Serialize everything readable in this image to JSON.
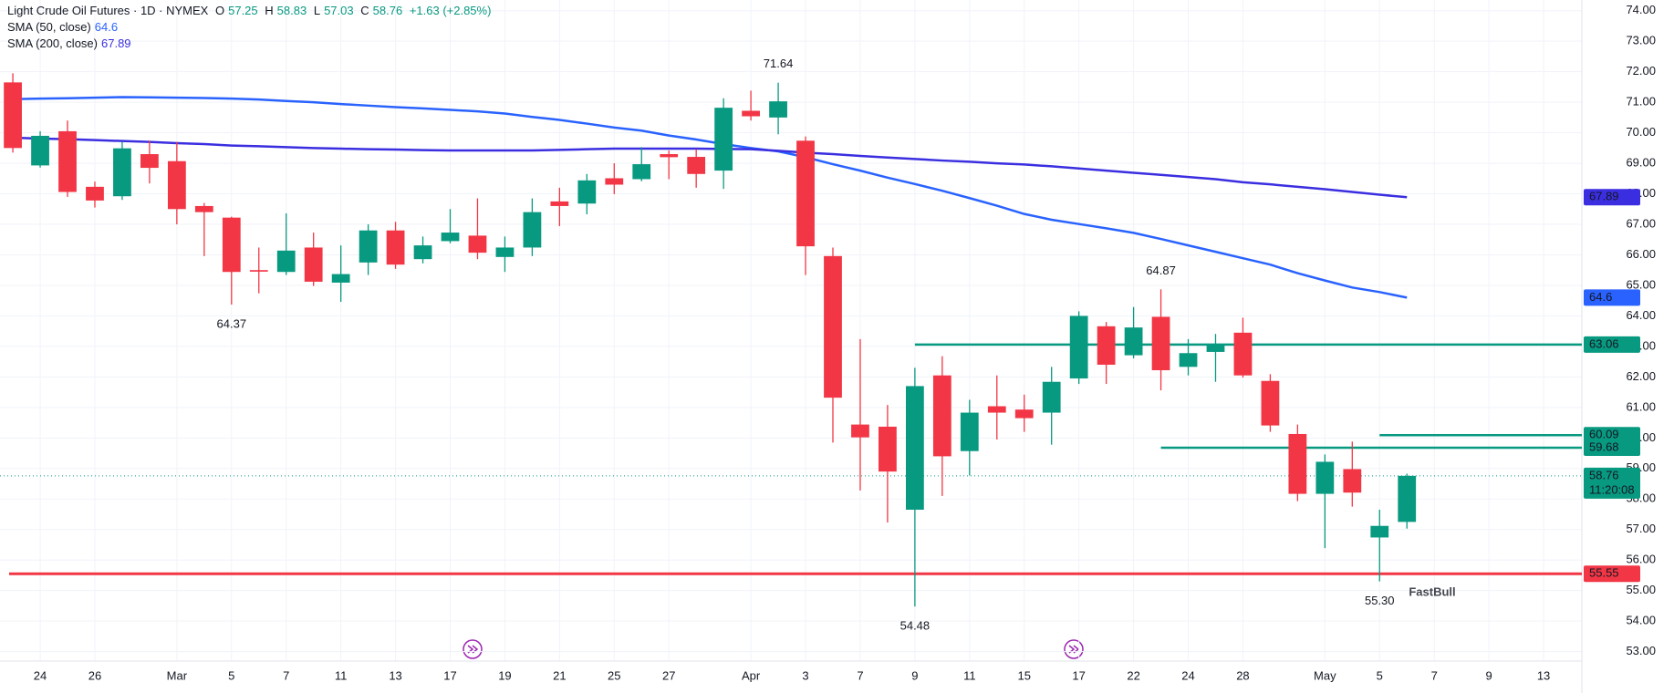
{
  "chart_data": {
    "type": "candlestick",
    "title": "Light Crude Oil Futures · 1D · NYMEX",
    "ohlc_labels": [
      "O",
      "H",
      "L",
      "C"
    ],
    "change": "+1.63 (+2.85%)",
    "countdown": "11:20:08",
    "watermark": "FastBull",
    "up_color": "#089981",
    "down_color": "#f23645",
    "grid": true,
    "open": [
      71.65,
      68.93,
      70.05,
      68.23,
      67.92,
      69.3,
      69.07,
      67.6,
      67.22,
      65.5,
      65.44,
      66.24,
      65.09,
      65.75,
      66.8,
      65.86,
      66.45,
      66.63,
      65.93,
      66.24,
      67.75,
      67.68,
      68.51,
      68.48,
      69.3,
      69.21,
      68.76,
      70.72,
      70.5,
      69.74,
      65.96,
      60.44,
      60.37,
      57.65,
      62.05,
      59.57,
      61.04,
      60.93,
      60.83,
      61.95,
      63.66,
      62.71,
      63.97,
      62.33,
      62.82,
      63.45,
      61.87,
      60.13,
      58.17,
      58.98,
      56.74,
      57.25
    ],
    "high": [
      71.95,
      70.05,
      70.4,
      68.4,
      69.7,
      69.74,
      69.7,
      67.7,
      67.25,
      66.24,
      67.36,
      66.73,
      66.31,
      67.0,
      67.08,
      66.6,
      67.5,
      67.85,
      66.6,
      67.85,
      68.2,
      68.65,
      69.0,
      69.53,
      69.42,
      69.46,
      71.13,
      71.38,
      71.64,
      69.88,
      66.24,
      63.24,
      61.08,
      62.3,
      62.68,
      61.25,
      62.05,
      61.42,
      62.33,
      64.15,
      63.8,
      64.29,
      64.87,
      63.24,
      63.41,
      63.94,
      62.09,
      60.44,
      59.46,
      59.88,
      57.65,
      58.83
    ],
    "low": [
      69.35,
      68.86,
      67.9,
      67.55,
      67.8,
      68.34,
      67.0,
      65.96,
      64.37,
      64.74,
      65.34,
      64.98,
      64.46,
      65.34,
      65.54,
      65.72,
      66.38,
      65.86,
      65.44,
      65.96,
      66.94,
      67.33,
      67.99,
      68.41,
      68.48,
      68.2,
      68.16,
      70.4,
      69.95,
      65.34,
      59.85,
      58.28,
      57.23,
      54.48,
      58.1,
      58.77,
      59.95,
      60.2,
      59.78,
      61.77,
      61.77,
      62.61,
      61.56,
      62.05,
      61.84,
      61.98,
      60.2,
      57.93,
      56.39,
      57.75,
      55.3,
      57.03
    ],
    "close": [
      69.5,
      69.9,
      68.06,
      67.78,
      69.49,
      68.85,
      67.5,
      67.4,
      65.44,
      65.45,
      66.14,
      65.12,
      65.37,
      66.8,
      65.68,
      66.31,
      66.73,
      66.07,
      66.24,
      67.4,
      67.6,
      68.44,
      68.3,
      68.97,
      69.2,
      68.65,
      70.82,
      70.54,
      71.03,
      66.28,
      61.32,
      60.02,
      58.9,
      61.7,
      59.4,
      60.83,
      60.83,
      60.65,
      61.84,
      64.0,
      62.4,
      63.62,
      62.22,
      62.78,
      63.06,
      62.05,
      60.41,
      58.17,
      59.22,
      58.21,
      57.12,
      58.76
    ],
    "overlays": [
      {
        "name": "SMA (50, close)",
        "color": "#2962ff",
        "values": [
          71.1,
          71.12,
          71.13,
          71.15,
          71.17,
          71.16,
          71.15,
          71.14,
          71.12,
          71.09,
          71.04,
          71.0,
          70.94,
          70.89,
          70.84,
          70.8,
          70.75,
          70.7,
          70.63,
          70.52,
          70.42,
          70.3,
          70.17,
          70.07,
          69.91,
          69.78,
          69.63,
          69.5,
          69.39,
          69.2,
          68.97,
          68.76,
          68.53,
          68.32,
          68.1,
          67.86,
          67.61,
          67.34,
          67.15,
          67.01,
          66.87,
          66.72,
          66.52,
          66.31,
          66.1,
          65.89,
          65.68,
          65.4,
          65.16,
          64.93,
          64.78,
          64.6
        ]
      },
      {
        "name": "SMA (200, close)",
        "color": "#3a2ee0",
        "values": [
          69.84,
          69.81,
          69.79,
          69.76,
          69.73,
          69.7,
          69.66,
          69.63,
          69.58,
          69.56,
          69.53,
          69.5,
          69.48,
          69.46,
          69.45,
          69.43,
          69.42,
          69.42,
          69.42,
          69.42,
          69.44,
          69.46,
          69.48,
          69.48,
          69.48,
          69.48,
          69.47,
          69.46,
          69.41,
          69.35,
          69.3,
          69.24,
          69.19,
          69.14,
          69.09,
          69.05,
          69.0,
          68.96,
          68.9,
          68.83,
          68.76,
          68.69,
          68.62,
          68.55,
          68.48,
          68.38,
          68.31,
          68.23,
          68.15,
          68.06,
          67.97,
          67.89
        ]
      }
    ],
    "levels": [
      {
        "value": 63.06,
        "color": "#089981",
        "start": 33
      },
      {
        "value": 60.09,
        "color": "#089981",
        "start": 50
      },
      {
        "value": 59.68,
        "color": "#089981",
        "start": 42
      },
      {
        "value": 55.55,
        "color": "#f23645"
      }
    ],
    "annotations": [
      {
        "text": "71.64",
        "x": 28,
        "position": "above"
      },
      {
        "text": "64.37",
        "x": 8,
        "position": "below"
      },
      {
        "text": "64.87",
        "x": 42,
        "position": "above"
      },
      {
        "text": "54.48",
        "x": 33,
        "position": "below"
      },
      {
        "text": "55.30",
        "x": 50,
        "position": "below"
      }
    ],
    "xlim": [
      -0.47,
      57.4
    ],
    "ylim": [
      52.69,
      74.35
    ],
    "xticks": [
      {
        "value": 1,
        "label": "24"
      },
      {
        "value": 3,
        "label": "26"
      },
      {
        "value": 6,
        "label": "Mar"
      },
      {
        "value": 8,
        "label": "5"
      },
      {
        "value": 10,
        "label": "7"
      },
      {
        "value": 12,
        "label": "11"
      },
      {
        "value": 14,
        "label": "13"
      },
      {
        "value": 16,
        "label": "17"
      },
      {
        "value": 18,
        "label": "19"
      },
      {
        "value": 20,
        "label": "21"
      },
      {
        "value": 22,
        "label": "25"
      },
      {
        "value": 24,
        "label": "27"
      },
      {
        "value": 27,
        "label": "Apr"
      },
      {
        "value": 29,
        "label": "3"
      },
      {
        "value": 31,
        "label": "7"
      },
      {
        "value": 33,
        "label": "9"
      },
      {
        "value": 35,
        "label": "11"
      },
      {
        "value": 37,
        "label": "15"
      },
      {
        "value": 39,
        "label": "17"
      },
      {
        "value": 41,
        "label": "22"
      },
      {
        "value": 43,
        "label": "24"
      },
      {
        "value": 45,
        "label": "28"
      },
      {
        "value": 48,
        "label": "May"
      },
      {
        "value": 50,
        "label": "5"
      },
      {
        "value": 52,
        "label": "7"
      },
      {
        "value": 54,
        "label": "9"
      },
      {
        "value": 56,
        "label": "13"
      }
    ],
    "yticks": [
      {
        "value": 53,
        "label": "53.00"
      },
      {
        "value": 54,
        "label": "54.00"
      },
      {
        "value": 55,
        "label": "55.00"
      },
      {
        "value": 56,
        "label": "56.00"
      },
      {
        "value": 57,
        "label": "57.00"
      },
      {
        "value": 58,
        "label": "58.00"
      },
      {
        "value": 59,
        "label": "59.00"
      },
      {
        "value": 60,
        "label": "60.00"
      },
      {
        "value": 61,
        "label": "61.00"
      },
      {
        "value": 62,
        "label": "62.00"
      },
      {
        "value": 63,
        "label": "63.00"
      },
      {
        "value": 64,
        "label": "64.00"
      },
      {
        "value": 65,
        "label": "65.00"
      },
      {
        "value": 66,
        "label": "66.00"
      },
      {
        "value": 67,
        "label": "67.00"
      },
      {
        "value": 68,
        "label": "68.00"
      },
      {
        "value": 69,
        "label": "69.00"
      },
      {
        "value": 70,
        "label": "70.00"
      },
      {
        "value": 71,
        "label": "71.00"
      },
      {
        "value": 72,
        "label": "72.00"
      },
      {
        "value": 73,
        "label": "73.00"
      },
      {
        "value": 74,
        "label": "74.00"
      }
    ]
  }
}
